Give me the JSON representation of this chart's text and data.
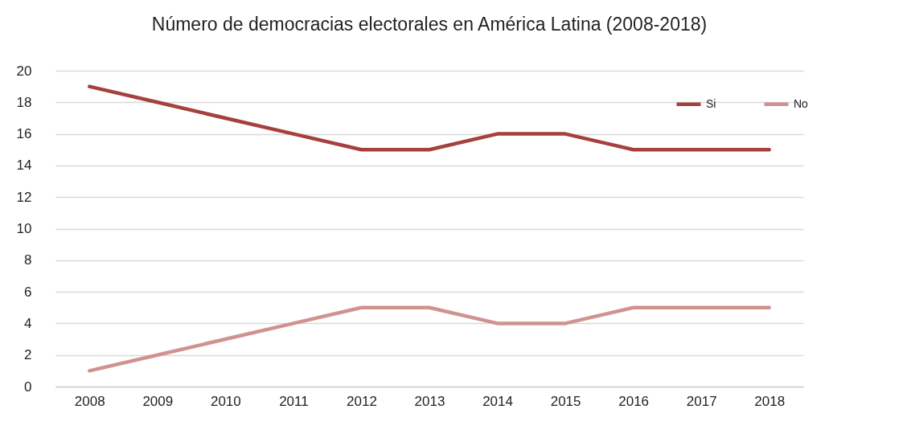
{
  "chart_data": {
    "type": "line",
    "title": "Número de democracias electorales en América Latina (2008-2018)",
    "categories": [
      "2008",
      "2009",
      "2010",
      "2011",
      "2012",
      "2013",
      "2014",
      "2015",
      "2016",
      "2017",
      "2018"
    ],
    "series": [
      {
        "name": "Si",
        "color": "#a5403c",
        "values": [
          19,
          18,
          17,
          16,
          15,
          15,
          16,
          16,
          15,
          15,
          15
        ]
      },
      {
        "name": "No",
        "color": "#d09291",
        "values": [
          1,
          2,
          3,
          4,
          5,
          5,
          4,
          4,
          5,
          5,
          5
        ]
      }
    ],
    "ylim": [
      0,
      20
    ],
    "yticks": [
      0,
      2,
      4,
      6,
      8,
      10,
      12,
      14,
      16,
      18,
      20
    ],
    "grid": "y",
    "legend": "top right",
    "marker": "none",
    "line_style": "solid"
  }
}
